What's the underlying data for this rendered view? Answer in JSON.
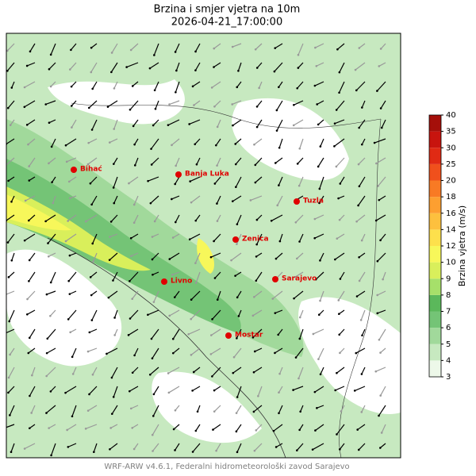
{
  "header": {
    "title": "Brzina i smjer vjetra na 10m",
    "subtitle": "2026-04-21_17:00:00"
  },
  "map": {
    "cities": [
      {
        "label": "Bihać"
      },
      {
        "label": "Banja Luka"
      },
      {
        "label": "Tuzla"
      },
      {
        "label": "Zenica"
      },
      {
        "label": "Sarajevo"
      },
      {
        "label": "Livno"
      },
      {
        "label": "Mostar"
      }
    ],
    "city_color": "#e00000"
  },
  "colorbar": {
    "label": "Brzina vjetra (m/s)",
    "ticks": [
      3,
      4,
      5,
      6,
      7,
      8,
      9,
      10,
      12,
      14,
      16,
      18,
      20,
      25,
      30,
      35,
      40
    ],
    "colors": [
      "#edf8e9",
      "#c7e9c0",
      "#a1d99b",
      "#74c476",
      "#5bb85b",
      "#a6e06a",
      "#d9ef5b",
      "#f7f75a",
      "#fde04c",
      "#fdc03e",
      "#fd9f30",
      "#f87a24",
      "#f0501c",
      "#e02a14",
      "#c8140e",
      "#a50f0a"
    ]
  },
  "footer": "WRF-ARW v4.6.1, Federalni hidrometeorološki zavod Sarajevo"
}
